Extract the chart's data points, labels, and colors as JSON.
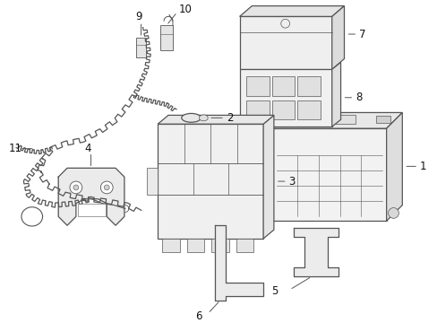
{
  "bg_color": "#ffffff",
  "line_color": "#555555",
  "label_color": "#111111",
  "fig_width": 4.89,
  "fig_height": 3.6,
  "dpi": 100
}
